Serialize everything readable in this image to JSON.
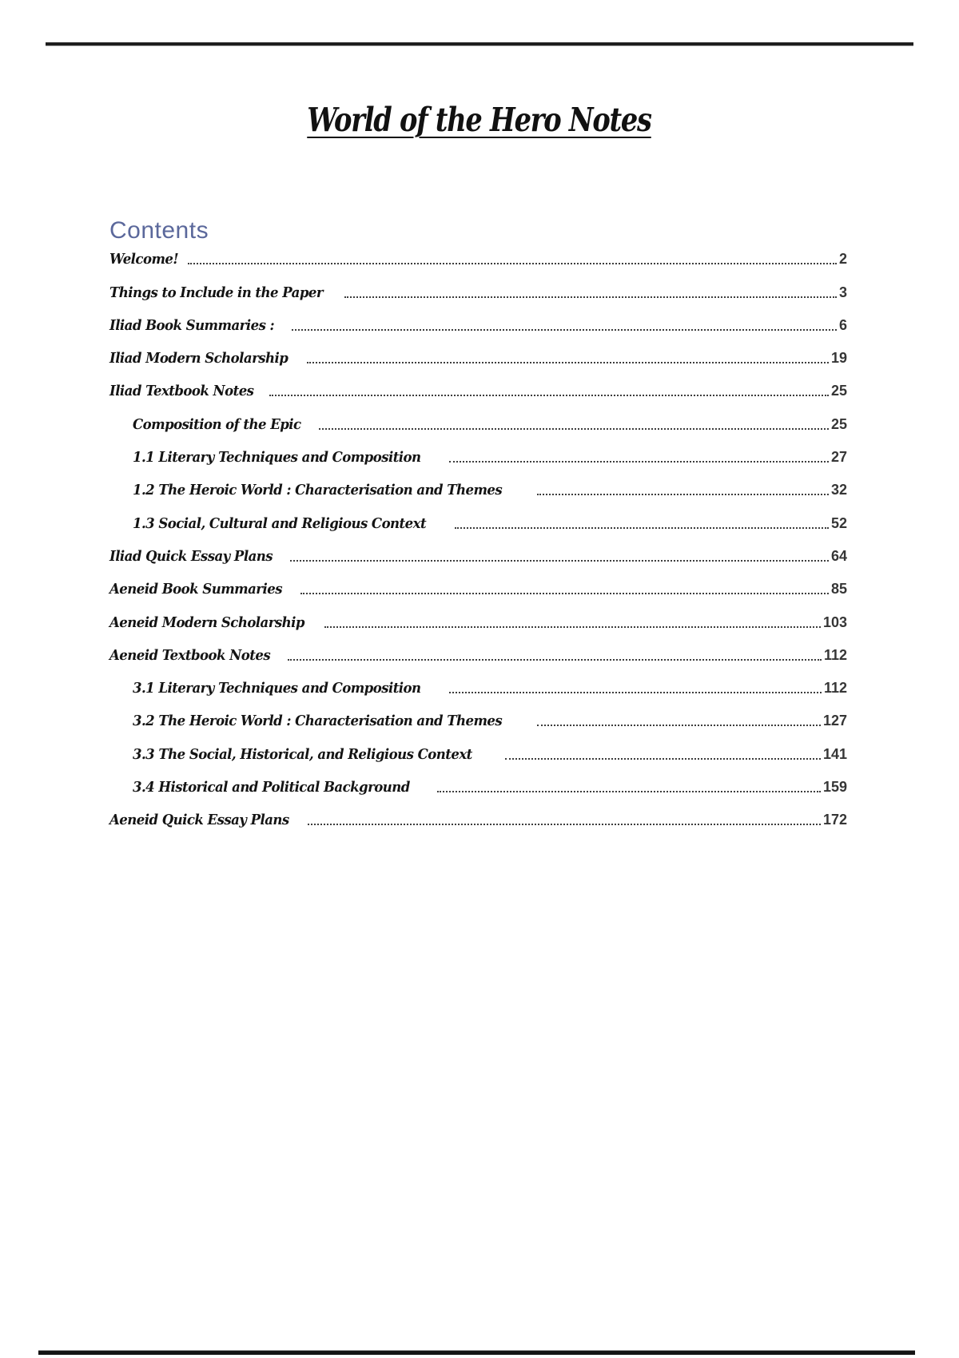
{
  "document": {
    "title": "World of the Hero Notes",
    "contents_heading": "Contents"
  },
  "toc": {
    "entries": [
      {
        "label": "Welcome!",
        "page": "2",
        "level": 1
      },
      {
        "label": "Things to Include in the Paper",
        "page": "3",
        "level": 1
      },
      {
        "label": "Iliad Book Summaries :",
        "page": "6",
        "level": 1
      },
      {
        "label": "Iliad Modern Scholarship",
        "page": "19",
        "level": 1
      },
      {
        "label": "Iliad Textbook Notes",
        "page": "25",
        "level": 1
      },
      {
        "label": "Composition of the Epic",
        "page": "25",
        "level": 2
      },
      {
        "label": "1.1 Literary Techniques and Composition",
        "page": "27",
        "level": 2
      },
      {
        "label": "1.2 The Heroic World : Characterisation and Themes",
        "page": "32",
        "level": 2
      },
      {
        "label": "1.3 Social, Cultural and Religious Context",
        "page": "52",
        "level": 2
      },
      {
        "label": "Iliad Quick Essay Plans",
        "page": "64",
        "level": 1
      },
      {
        "label": "Aeneid Book Summaries",
        "page": "85",
        "level": 1
      },
      {
        "label": "Aeneid Modern Scholarship",
        "page": "103",
        "level": 1
      },
      {
        "label": "Aeneid Textbook Notes",
        "page": "112",
        "level": 1
      },
      {
        "label": "3.1 Literary Techniques and Composition",
        "page": "112",
        "level": 2
      },
      {
        "label": "3.2 The Heroic World : Characterisation and Themes",
        "page": "127",
        "level": 2
      },
      {
        "label": "3.3 The Social, Historical, and Religious Context",
        "page": "141",
        "level": 2
      },
      {
        "label": "3.4 Historical and Political Background",
        "page": "159",
        "level": 2
      },
      {
        "label": "Aeneid Quick Essay Plans",
        "page": "172",
        "level": 1
      }
    ]
  },
  "colors": {
    "contents_heading": "#5b689b",
    "body_text": "#141414",
    "page_number": "#363636",
    "rule": "#1f1f1f"
  }
}
